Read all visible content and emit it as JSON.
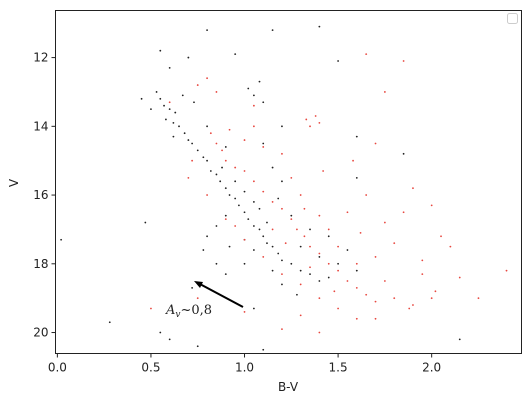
{
  "chart_data": {
    "type": "scatter",
    "x_label": "B-V",
    "y_label": "V",
    "xlim": [
      -0.01,
      2.48
    ],
    "ylim": [
      10.63,
      20.61
    ],
    "y_inverted": true,
    "xticks": [
      {
        "value": 0,
        "label": "0.0"
      },
      0.5,
      {
        "value": 1,
        "label": "1.0"
      },
      1.5,
      {
        "value": 2,
        "label": "2.0"
      }
    ],
    "yticks": [
      12,
      14,
      16,
      18,
      20
    ],
    "legend": "upper right",
    "annotation": {
      "text": "A",
      "subscript": "v",
      "suffix": "~0,8"
    },
    "series": [
      {
        "color": "#222222",
        "x": [
          0.53,
          0.55,
          0.57,
          0.6,
          0.58,
          0.62,
          0.65,
          0.68,
          0.7,
          0.63,
          0.72,
          0.75,
          0.78,
          0.8,
          0.82,
          0.85,
          0.87,
          0.9,
          0.92,
          0.95,
          0.97,
          1.0,
          1.02,
          1.05,
          1.08,
          1.1,
          1.12,
          1.15,
          1.18,
          1.2,
          1.25,
          1.3,
          1.35,
          1.4,
          1.45,
          0.88,
          0.95,
          1.0,
          1.05,
          1.08,
          1.12,
          0.9,
          0.85,
          0.8,
          0.78,
          0.85,
          0.9,
          1.0,
          1.05,
          1.15,
          1.2,
          1.3,
          1.35,
          1.25,
          1.5,
          1.55,
          1.4,
          1.02,
          1.05,
          1.08,
          1.1,
          1.2,
          1.1,
          1.15,
          1.2,
          0.6,
          0.55,
          0.7,
          0.8,
          0.95,
          1.15,
          1.4,
          1.5,
          1.6,
          1.85,
          1.6,
          0.47,
          0.02,
          0.28,
          0.55,
          0.6,
          0.75,
          1.1,
          2.15,
          1.05,
          0.72,
          0.5,
          0.45,
          0.67,
          0.73,
          0.9,
          0.92,
          1.0,
          1.18,
          1.6,
          1.45,
          1.28,
          0.62,
          0.8
        ],
        "values": [
          13.0,
          13.2,
          13.4,
          13.5,
          13.8,
          13.9,
          14.0,
          14.2,
          14.4,
          13.6,
          14.5,
          14.7,
          14.9,
          15.0,
          15.3,
          15.4,
          15.6,
          15.8,
          16.0,
          16.1,
          16.3,
          16.5,
          16.7,
          16.9,
          17.0,
          17.2,
          17.4,
          17.5,
          17.7,
          17.9,
          18.0,
          18.2,
          18.3,
          18.5,
          18.4,
          15.2,
          15.6,
          15.9,
          16.2,
          16.4,
          16.8,
          16.6,
          16.9,
          17.2,
          17.6,
          18.0,
          18.3,
          18.0,
          17.6,
          18.2,
          18.6,
          17.5,
          17.0,
          16.6,
          18.0,
          17.6,
          17.8,
          12.9,
          13.1,
          12.7,
          13.3,
          14.0,
          14.5,
          15.2,
          15.6,
          12.3,
          11.8,
          12.0,
          11.2,
          11.9,
          11.2,
          11.1,
          12.1,
          14.3,
          14.8,
          15.5,
          16.8,
          17.3,
          19.7,
          20.0,
          20.2,
          20.4,
          20.5,
          20.2,
          19.3,
          18.7,
          13.5,
          13.2,
          13.1,
          13.3,
          14.6,
          17.5,
          17.3,
          16.1,
          18.2,
          17.2,
          18.9,
          14.3,
          14.0
        ]
      },
      {
        "color": "#e8473f",
        "x": [
          0.82,
          0.85,
          0.88,
          0.9,
          0.95,
          1.0,
          1.05,
          1.1,
          1.15,
          1.2,
          1.25,
          1.28,
          1.32,
          1.35,
          1.4,
          1.45,
          1.5,
          1.55,
          1.6,
          1.65,
          1.7,
          1.8,
          1.9,
          2.0,
          1.75,
          1.6,
          1.5,
          1.45,
          1.4,
          1.3,
          1.25,
          1.35,
          1.38,
          1.4,
          1.33,
          1.2,
          1.1,
          1.0,
          0.92,
          0.95,
          0.9,
          1.0,
          1.1,
          1.2,
          1.3,
          1.4,
          1.5,
          1.3,
          1.2,
          1.4,
          1.6,
          1.7,
          1.8,
          1.85,
          1.9,
          2.0,
          2.05,
          2.1,
          2.15,
          2.25,
          2.4,
          1.95,
          1.75,
          1.65,
          1.55,
          1.58,
          1.7,
          1.75,
          1.85,
          1.65,
          0.8,
          0.6,
          0.85,
          0.75,
          1.05,
          0.7,
          0.8,
          0.75,
          1.0,
          0.5,
          0.72,
          1.7,
          1.88,
          1.95,
          2.02,
          1.62,
          1.48,
          1.35,
          1.22,
          1.15,
          1.32,
          1.42,
          1.05
        ],
        "values": [
          14.2,
          14.5,
          14.7,
          15.0,
          15.2,
          15.3,
          15.6,
          15.9,
          16.2,
          16.4,
          16.7,
          17.0,
          17.2,
          17.5,
          17.7,
          18.0,
          18.2,
          18.5,
          18.7,
          18.9,
          19.1,
          19.0,
          19.2,
          19.0,
          18.5,
          18.0,
          17.5,
          17.0,
          16.6,
          16.0,
          15.5,
          14.0,
          13.7,
          13.9,
          13.8,
          14.8,
          14.6,
          14.4,
          14.1,
          16.9,
          16.7,
          17.3,
          17.8,
          18.3,
          18.6,
          19.0,
          19.3,
          19.5,
          19.9,
          20.0,
          19.6,
          17.8,
          17.4,
          16.5,
          15.8,
          16.3,
          17.2,
          17.5,
          18.4,
          19.0,
          18.2,
          18.3,
          16.8,
          16.0,
          16.5,
          15.0,
          14.5,
          13.0,
          12.1,
          11.9,
          12.6,
          13.3,
          13.0,
          12.8,
          13.4,
          15.5,
          16.0,
          19.0,
          19.4,
          19.3,
          15.0,
          19.6,
          19.3,
          17.9,
          18.8,
          17.1,
          18.8,
          18.1,
          17.4,
          17.0,
          16.4,
          15.3,
          14.0
        ]
      }
    ]
  }
}
